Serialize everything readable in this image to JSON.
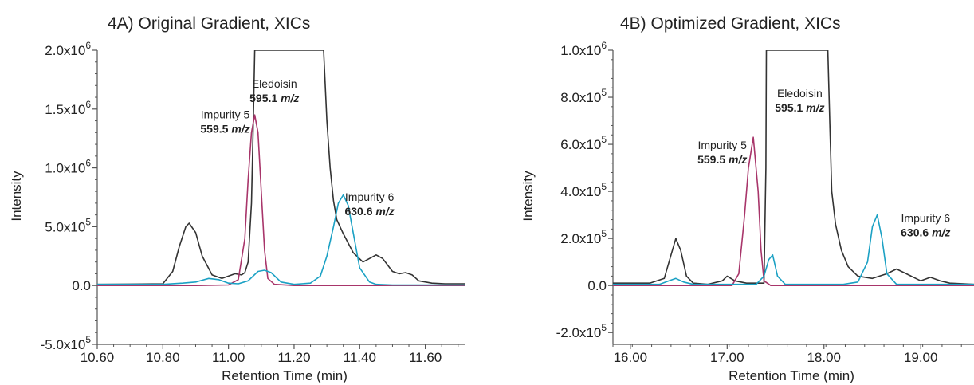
{
  "chart_data": [
    {
      "type": "line",
      "title": "4A) Original Gradient, XICs",
      "xlabel": "Retention Time (min)",
      "ylabel": "Intensity",
      "xlim": [
        10.6,
        11.72
      ],
      "ylim": [
        -500000,
        2000000
      ],
      "x_ticks": [
        10.6,
        10.8,
        11.0,
        11.2,
        11.4,
        11.6
      ],
      "x_tick_labels": [
        "10.60",
        "10.80",
        "11.00",
        "11.20",
        "11.40",
        "11.60"
      ],
      "y_ticks": [
        {
          "value": -500000,
          "mant": "-5.0x10",
          "exp": "5"
        },
        {
          "value": 0,
          "mant": "0.0",
          "exp": ""
        },
        {
          "value": 500000,
          "mant": "5.0x10",
          "exp": "5"
        },
        {
          "value": 1000000,
          "mant": "1.0x10",
          "exp": "6"
        },
        {
          "value": 1500000,
          "mant": "1.5x10",
          "exp": "6"
        },
        {
          "value": 2000000,
          "mant": "2.0x10",
          "exp": "6"
        }
      ],
      "grid": false,
      "annotations": [
        {
          "label": "Impurity 5",
          "mz": "559.5",
          "unit": "m/z",
          "x": 10.99,
          "y": 1420000
        },
        {
          "label": "Eledoisin",
          "mz": "595.1",
          "unit": "m/z",
          "x": 11.14,
          "y": 1680000
        },
        {
          "label": "Impurity 6",
          "mz": "630.6",
          "unit": "m/z",
          "x": 11.43,
          "y": 720000
        }
      ],
      "series": [
        {
          "color": "#333333",
          "x": [
            10.6,
            10.7,
            10.8,
            10.83,
            10.85,
            10.87,
            10.88,
            10.9,
            10.92,
            10.95,
            10.98,
            11.0,
            11.02,
            11.04,
            11.05,
            11.06,
            11.07,
            11.075,
            11.08,
            11.29,
            11.3,
            11.31,
            11.32,
            11.33,
            11.35,
            11.38,
            11.41,
            11.43,
            11.45,
            11.47,
            11.5,
            11.52,
            11.54,
            11.56,
            11.58,
            11.62,
            11.66,
            11.72
          ],
          "y": [
            10000,
            12000,
            15000,
            120000,
            330000,
            500000,
            530000,
            450000,
            250000,
            90000,
            60000,
            80000,
            100000,
            90000,
            110000,
            200000,
            700000,
            1300000,
            2000000,
            2000000,
            1400000,
            1000000,
            720000,
            560000,
            440000,
            280000,
            200000,
            230000,
            260000,
            230000,
            120000,
            100000,
            110000,
            90000,
            40000,
            20000,
            15000,
            15000
          ]
        },
        {
          "color": "#a8356a",
          "x": [
            10.6,
            10.9,
            11.0,
            11.03,
            11.05,
            11.06,
            11.07,
            11.08,
            11.09,
            11.1,
            11.11,
            11.12,
            11.14,
            11.2,
            11.72
          ],
          "y": [
            0,
            0,
            5000,
            50000,
            400000,
            900000,
            1300000,
            1450000,
            1300000,
            800000,
            300000,
            60000,
            10000,
            0,
            0
          ],
          "legend": false
        },
        {
          "color": "#1ba1c4",
          "x": [
            10.6,
            10.8,
            10.86,
            10.9,
            10.94,
            10.97,
            11.0,
            11.03,
            11.06,
            11.09,
            11.11,
            11.13,
            11.16,
            11.2,
            11.25,
            11.28,
            11.3,
            11.32,
            11.335,
            11.35,
            11.365,
            11.38,
            11.4,
            11.43,
            11.45,
            11.5,
            11.72
          ],
          "y": [
            10000,
            10000,
            20000,
            30000,
            60000,
            50000,
            20000,
            15000,
            40000,
            120000,
            130000,
            110000,
            30000,
            10000,
            20000,
            80000,
            250000,
            500000,
            700000,
            770000,
            680000,
            450000,
            150000,
            30000,
            10000,
            5000,
            5000
          ]
        }
      ]
    },
    {
      "type": "line",
      "title": "4B) Optimized Gradient, XICs",
      "xlabel": "Retention Time (min)",
      "ylabel": "Intensity",
      "xlim": [
        15.82,
        19.55
      ],
      "ylim": [
        -250000,
        1000000
      ],
      "x_ticks": [
        16.0,
        17.0,
        18.0,
        19.0
      ],
      "x_tick_labels": [
        "16.00",
        "17.00",
        "18.00",
        "19.00"
      ],
      "y_ticks": [
        {
          "value": -200000,
          "mant": "-2.0x10",
          "exp": "5"
        },
        {
          "value": 0,
          "mant": "0.0",
          "exp": ""
        },
        {
          "value": 200000,
          "mant": "2.0x10",
          "exp": "5"
        },
        {
          "value": 400000,
          "mant": "4.0x10",
          "exp": "5"
        },
        {
          "value": 600000,
          "mant": "6.0x10",
          "exp": "5"
        },
        {
          "value": 800000,
          "mant": "8.0x10",
          "exp": "5"
        },
        {
          "value": 1000000,
          "mant": "1.0x10",
          "exp": "6"
        }
      ],
      "grid": false,
      "annotations": [
        {
          "label": "Impurity 5",
          "mz": "559.5",
          "unit": "m/z",
          "x": 16.95,
          "y": 580000
        },
        {
          "label": "Eledoisin",
          "mz": "595.1",
          "unit": "m/z",
          "x": 17.75,
          "y": 800000
        },
        {
          "label": "Impurity 6",
          "mz": "630.6",
          "unit": "m/z",
          "x": 19.05,
          "y": 270000
        }
      ],
      "series": [
        {
          "color": "#333333",
          "x": [
            15.82,
            16.2,
            16.35,
            16.42,
            16.47,
            16.52,
            16.58,
            16.65,
            16.8,
            16.95,
            17.0,
            17.08,
            17.2,
            17.38,
            17.4,
            17.405,
            18.04,
            18.06,
            18.08,
            18.12,
            18.18,
            18.25,
            18.35,
            18.5,
            18.65,
            18.75,
            18.85,
            19.0,
            19.1,
            19.2,
            19.3,
            19.55
          ],
          "y": [
            10000,
            10000,
            30000,
            130000,
            200000,
            150000,
            40000,
            10000,
            5000,
            20000,
            40000,
            20000,
            10000,
            10000,
            500000,
            1000000,
            1000000,
            700000,
            400000,
            260000,
            150000,
            80000,
            40000,
            30000,
            50000,
            70000,
            50000,
            20000,
            35000,
            20000,
            10000,
            5000
          ]
        },
        {
          "color": "#a8356a",
          "x": [
            15.82,
            17.05,
            17.12,
            17.18,
            17.22,
            17.27,
            17.32,
            17.35,
            17.38,
            17.45,
            19.55
          ],
          "y": [
            0,
            0,
            50000,
            300000,
            500000,
            630000,
            400000,
            150000,
            20000,
            0,
            0
          ],
          "legend": false
        },
        {
          "color": "#1ba1c4",
          "x": [
            15.82,
            16.3,
            16.4,
            16.47,
            16.55,
            16.65,
            17.3,
            17.38,
            17.43,
            17.47,
            17.52,
            17.6,
            18.2,
            18.35,
            18.45,
            18.5,
            18.55,
            18.6,
            18.65,
            18.75,
            19.55
          ],
          "y": [
            5000,
            5000,
            20000,
            30000,
            15000,
            5000,
            5000,
            40000,
            110000,
            130000,
            40000,
            5000,
            5000,
            15000,
            100000,
            250000,
            300000,
            200000,
            50000,
            5000,
            5000
          ]
        }
      ]
    }
  ]
}
